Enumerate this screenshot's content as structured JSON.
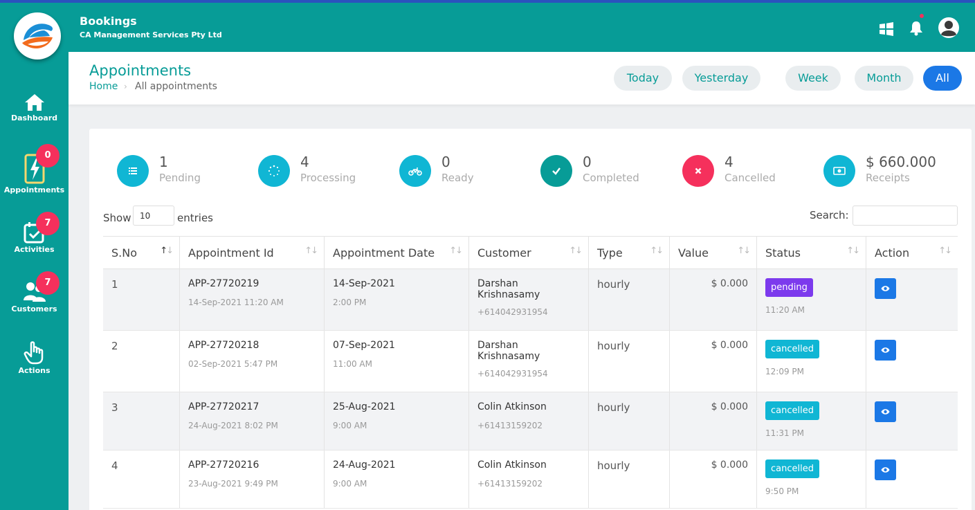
{
  "header": {
    "title": "Bookings",
    "subtitle": "CA Management Services Pty Ltd"
  },
  "sidebar": {
    "items": [
      {
        "label": "Dashboard",
        "icon": "home-icon",
        "badge": ""
      },
      {
        "label": "Appointments",
        "icon": "bolt-icon",
        "badge": "0"
      },
      {
        "label": "Activities",
        "icon": "calendar-check-icon",
        "badge": "7"
      },
      {
        "label": "Customers",
        "icon": "users-icon",
        "badge": "7"
      },
      {
        "label": "Actions",
        "icon": "pointer-hand-icon",
        "badge": ""
      }
    ]
  },
  "page": {
    "title": "Appointments",
    "breadcrumb_home": "Home",
    "breadcrumb_sep": "›",
    "breadcrumb_current": "All appointments"
  },
  "filters": [
    "Today",
    "Yesterday",
    "Week",
    "Month",
    "All"
  ],
  "active_filter": "All",
  "stats": [
    {
      "value": "1",
      "label": "Pending",
      "color": "#10b6d4",
      "icon": "list-icon"
    },
    {
      "value": "4",
      "label": "Processing",
      "color": "#10b6d4",
      "icon": "spinner-icon"
    },
    {
      "value": "0",
      "label": "Ready",
      "color": "#10b6d4",
      "icon": "motorcycle-icon"
    },
    {
      "value": "0",
      "label": "Completed",
      "color": "#079c97",
      "icon": "check-icon"
    },
    {
      "value": "4",
      "label": "Cancelled",
      "color": "#f5305c",
      "icon": "x-icon"
    },
    {
      "value": "$ 660.000",
      "label": "Receipts",
      "color": "#10b6d4",
      "icon": "money-icon"
    }
  ],
  "table_controls": {
    "show_label": "Show",
    "entries_value": "10",
    "entries_label": "entries",
    "search_label": "Search:",
    "search_value": ""
  },
  "table": {
    "columns": [
      "S.No",
      "Appointment Id",
      "Appointment Date",
      "Customer",
      "Type",
      "Value",
      "Status",
      "Action"
    ],
    "rows": [
      {
        "sno": "1",
        "id": "APP-27720219",
        "created": "14-Sep-2021 11:20 AM",
        "date": "14-Sep-2021",
        "time": "2:00 PM",
        "customer": "Darshan Krishnasamy",
        "phone": "+614042931954",
        "type": "hourly",
        "value": "$ 0.000",
        "status": "pending",
        "status_time": "11:20 AM"
      },
      {
        "sno": "2",
        "id": "APP-27720218",
        "created": "02-Sep-2021 5:47 PM",
        "date": "07-Sep-2021",
        "time": "11:00 AM",
        "customer": "Darshan Krishnasamy",
        "phone": "+614042931954",
        "type": "hourly",
        "value": "$ 0.000",
        "status": "cancelled",
        "status_time": "12:09 PM"
      },
      {
        "sno": "3",
        "id": "APP-27720217",
        "created": "24-Aug-2021 8:02 PM",
        "date": "25-Aug-2021",
        "time": "9:00 AM",
        "customer": "Colin Atkinson",
        "phone": "+61413159202",
        "type": "hourly",
        "value": "$ 0.000",
        "status": "cancelled",
        "status_time": "11:31 PM"
      },
      {
        "sno": "4",
        "id": "APP-27720216",
        "created": "23-Aug-2021 9:49 PM",
        "date": "24-Aug-2021",
        "time": "9:00 AM",
        "customer": "Colin Atkinson",
        "phone": "+61413159202",
        "type": "hourly",
        "value": "$ 0.000",
        "status": "cancelled",
        "status_time": "9:50 PM"
      }
    ]
  },
  "colors": {
    "primary": "#079c97",
    "accent_blue": "#1b78e6",
    "badge_red": "#f5305c",
    "pending": "#7c3aed",
    "cancelled": "#10b6d4"
  }
}
